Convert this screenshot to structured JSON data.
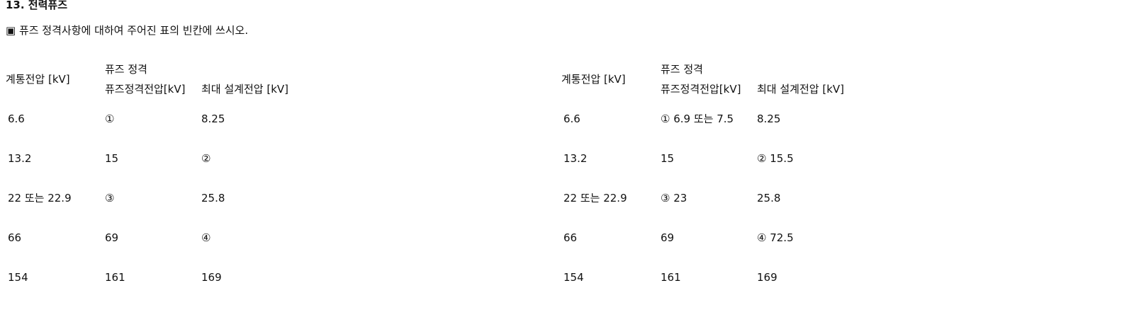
{
  "title": "13. 전력퓨즈",
  "instruction": "▣ 퓨즈 정격사항에 대하여 주어진 표의 빈칸에 쓰시오.",
  "headers": {
    "system_voltage": "계통전압 [kV]",
    "fuse_rating": "퓨즈 정격",
    "fuse_rated_voltage": "퓨즈정격전압[kV]",
    "max_design_voltage": "최대 설계전압 [kV]"
  },
  "question_table": {
    "rows": [
      {
        "system": "6.6",
        "rated": "①",
        "max": "8.25"
      },
      {
        "system": "13.2",
        "rated": "15",
        "max": "②"
      },
      {
        "system": "22 또는 22.9",
        "rated": "③",
        "max": "25.8"
      },
      {
        "system": "66",
        "rated": "69",
        "max": "④"
      },
      {
        "system": "154",
        "rated": "161",
        "max": "169"
      }
    ]
  },
  "answer_table": {
    "rows": [
      {
        "system": "6.6",
        "rated": "① 6.9 또는 7.5",
        "max": "8.25"
      },
      {
        "system": "13.2",
        "rated": "15",
        "max": "② 15.5"
      },
      {
        "system": "22 또는 22.9",
        "rated": "③ 23",
        "max": "25.8"
      },
      {
        "system": "66",
        "rated": "69",
        "max": "④ 72.5"
      },
      {
        "system": "154",
        "rated": "161",
        "max": "169"
      }
    ]
  }
}
